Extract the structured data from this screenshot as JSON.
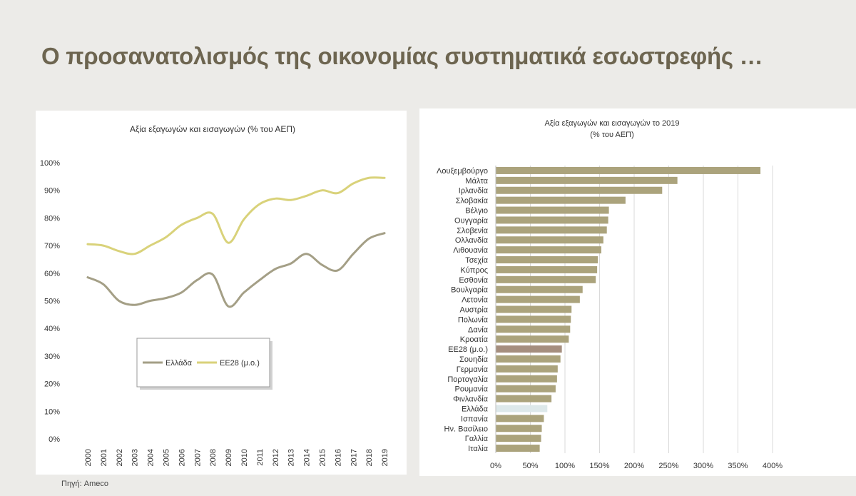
{
  "slide": {
    "title": "Ο προσανατολισμός της οικονομίας συστηματικά εσωστρεφής …",
    "source": "Πηγή: Ameco"
  },
  "colors": {
    "greece_line": "#a49f86",
    "eu_line": "#d9d27a",
    "bar": "#aba37c",
    "eu_bar": "#a58e7e",
    "greece_bar": "#dde8ea",
    "grid": "#d9d9d9"
  },
  "chart_data": [
    {
      "type": "line",
      "title": "Αξία εξαγωγών και εισαγωγών (% του ΑΕΠ)",
      "x": [
        "2000",
        "2001",
        "2002",
        "2003",
        "2004",
        "2005",
        "2006",
        "2007",
        "2008",
        "2009",
        "2010",
        "2011",
        "2012",
        "2013",
        "2014",
        "2015",
        "2016",
        "2017",
        "2018",
        "2019"
      ],
      "ylim": [
        0,
        100
      ],
      "yticks": [
        "0%",
        "10%",
        "20%",
        "30%",
        "40%",
        "50%",
        "60%",
        "70%",
        "80%",
        "90%",
        "100%"
      ],
      "grid": false,
      "legend_position": "center",
      "series": [
        {
          "name": "Ελλάδα",
          "values": [
            58.5,
            56,
            50,
            48.5,
            50,
            51,
            53,
            57.5,
            59.5,
            48,
            53,
            57.5,
            61.5,
            63.5,
            67,
            63,
            61,
            67,
            72.5,
            74.5
          ]
        },
        {
          "name": "ΕΕ28 (μ.ο.)",
          "values": [
            70.5,
            70,
            68,
            67,
            70,
            73,
            77.5,
            80,
            81.5,
            71,
            79.5,
            85,
            87,
            86.5,
            88,
            90,
            89,
            92.5,
            94.5,
            94.5
          ]
        }
      ]
    },
    {
      "type": "bar",
      "orientation": "horizontal",
      "title": "Αξία εξαγωγών και εισαγωγών το 2019",
      "subtitle": "(% του ΑΕΠ)",
      "xlim": [
        0,
        400
      ],
      "xticks": [
        "0%",
        "50%",
        "100%",
        "150%",
        "200%",
        "250%",
        "300%",
        "350%",
        "400%"
      ],
      "grid": true,
      "categories": [
        "Λουξεμβούργο",
        "Μάλτα",
        "Ιρλανδία",
        "Σλοβακία",
        "Βέλγιο",
        "Ουγγαρία",
        "Σλοβενία",
        "Ολλανδία",
        "Λιθουανία",
        "Τσεχία",
        "Κύπρος",
        "Εσθονία",
        "Βουλγαρία",
        "Λετονία",
        "Αυστρία",
        "Πολωνία",
        "Δανία",
        "Κροατία",
        "ΕΕ28 (μ.ο.)",
        "Σουηδία",
        "Γερμανία",
        "Πορτογαλία",
        "Ρουμανία",
        "Φινλανδία",
        "Ελλάδα",
        "Ισπανία",
        "Ην. Βασίλειο",
        "Γαλλία",
        "Ιταλία"
      ],
      "values": [
        382,
        262,
        240,
        187,
        163,
        162,
        160,
        155,
        152,
        147,
        146,
        144,
        125,
        121,
        109,
        108,
        107,
        105,
        95,
        93,
        89,
        88,
        86,
        80,
        74,
        69,
        66,
        65,
        63
      ],
      "highlights": {
        "ΕΕ28 (μ.ο.)": "eu_bar",
        "Ελλάδα": "greece_bar"
      }
    }
  ]
}
